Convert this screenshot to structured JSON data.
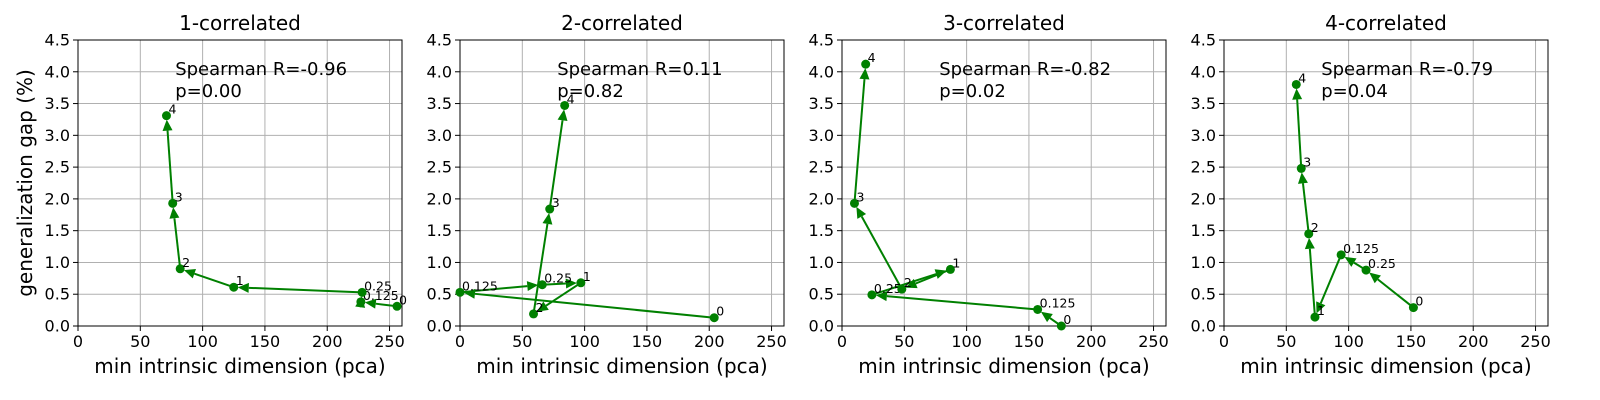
{
  "colors": {
    "series": "#008000",
    "grid": "#b0b0b0"
  },
  "chart_data": [
    {
      "type": "line",
      "title": "1-correlated",
      "xlabel": "min intrinsic dimension (pca)",
      "ylabel": "generalization gap (%)",
      "xlim": [
        0,
        260
      ],
      "ylim": [
        0,
        4.5
      ],
      "xticks": [
        "0",
        "50",
        "100",
        "150",
        "200",
        "250"
      ],
      "yticks": [
        "0.0",
        "0.5",
        "1.0",
        "1.5",
        "2.0",
        "2.5",
        "3.0",
        "3.5",
        "4.0",
        "4.5"
      ],
      "grid": true,
      "annotation": {
        "line1": "Spearman R=-0.96",
        "line2": "p=0.00"
      },
      "points": [
        {
          "label": "0",
          "x": 256,
          "y": 0.31
        },
        {
          "label": "0.125",
          "x": 227,
          "y": 0.38
        },
        {
          "label": "0.25",
          "x": 228,
          "y": 0.53
        },
        {
          "label": "1",
          "x": 125,
          "y": 0.61
        },
        {
          "label": "2",
          "x": 82,
          "y": 0.9
        },
        {
          "label": "3",
          "x": 76,
          "y": 1.93
        },
        {
          "label": "4",
          "x": 71,
          "y": 3.31
        }
      ]
    },
    {
      "type": "line",
      "title": "2-correlated",
      "xlabel": "min intrinsic dimension (pca)",
      "ylabel": "",
      "xlim": [
        0,
        260
      ],
      "ylim": [
        0,
        4.5
      ],
      "xticks": [
        "0",
        "50",
        "100",
        "150",
        "200",
        "250"
      ],
      "yticks": [
        "0.0",
        "0.5",
        "1.0",
        "1.5",
        "2.0",
        "2.5",
        "3.0",
        "3.5",
        "4.0",
        "4.5"
      ],
      "grid": true,
      "annotation": {
        "line1": "Spearman R=0.11",
        "line2": "p=0.82"
      },
      "points": [
        {
          "label": "0",
          "x": 204,
          "y": 0.13
        },
        {
          "label": "0.125",
          "x": 0,
          "y": 0.53
        },
        {
          "label": "0.25",
          "x": 66,
          "y": 0.65
        },
        {
          "label": "1",
          "x": 97,
          "y": 0.68
        },
        {
          "label": "2",
          "x": 59,
          "y": 0.19
        },
        {
          "label": "3",
          "x": 72,
          "y": 1.84
        },
        {
          "label": "4",
          "x": 84,
          "y": 3.47
        }
      ]
    },
    {
      "type": "line",
      "title": "3-correlated",
      "xlabel": "min intrinsic dimension (pca)",
      "ylabel": "",
      "xlim": [
        0,
        260
      ],
      "ylim": [
        0,
        4.5
      ],
      "xticks": [
        "0",
        "50",
        "100",
        "150",
        "200",
        "250"
      ],
      "yticks": [
        "0.0",
        "0.5",
        "1.0",
        "1.5",
        "2.0",
        "2.5",
        "3.0",
        "3.5",
        "4.0",
        "4.5"
      ],
      "grid": true,
      "annotation": {
        "line1": "Spearman R=-0.82",
        "line2": "p=0.02"
      },
      "points": [
        {
          "label": "0",
          "x": 176,
          "y": 0.0
        },
        {
          "label": "0.125",
          "x": 157,
          "y": 0.26
        },
        {
          "label": "0.25",
          "x": 24,
          "y": 0.49
        },
        {
          "label": "1",
          "x": 87,
          "y": 0.89
        },
        {
          "label": "2",
          "x": 48,
          "y": 0.58
        },
        {
          "label": "3",
          "x": 10,
          "y": 1.93
        },
        {
          "label": "4",
          "x": 19,
          "y": 4.12
        }
      ]
    },
    {
      "type": "line",
      "title": "4-correlated",
      "xlabel": "min intrinsic dimension (pca)",
      "ylabel": "",
      "xlim": [
        0,
        260
      ],
      "ylim": [
        0,
        4.5
      ],
      "xticks": [
        "0",
        "50",
        "100",
        "150",
        "200",
        "250"
      ],
      "yticks": [
        "0.0",
        "0.5",
        "1.0",
        "1.5",
        "2.0",
        "2.5",
        "3.0",
        "3.5",
        "4.0",
        "4.5"
      ],
      "grid": true,
      "annotation": {
        "line1": "Spearman R=-0.79",
        "line2": "p=0.04"
      },
      "points": [
        {
          "label": "0",
          "x": 152,
          "y": 0.29
        },
        {
          "label": "0.25",
          "x": 114,
          "y": 0.88
        },
        {
          "label": "0.125",
          "x": 94,
          "y": 1.12
        },
        {
          "label": "1",
          "x": 73,
          "y": 0.14
        },
        {
          "label": "2",
          "x": 68,
          "y": 1.45
        },
        {
          "label": "3",
          "x": 62,
          "y": 2.48
        },
        {
          "label": "4",
          "x": 58,
          "y": 3.8
        }
      ]
    }
  ]
}
